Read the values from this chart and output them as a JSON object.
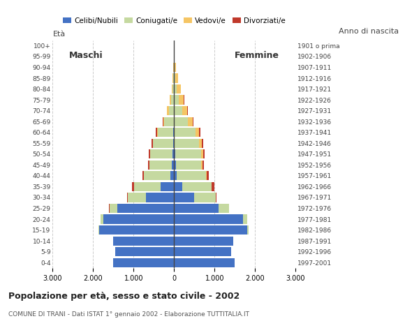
{
  "age_groups": [
    "0-4",
    "5-9",
    "10-14",
    "15-19",
    "20-24",
    "25-29",
    "30-34",
    "35-39",
    "40-44",
    "45-49",
    "50-54",
    "55-59",
    "60-64",
    "65-69",
    "70-74",
    "75-79",
    "80-84",
    "85-89",
    "90-94",
    "95-99",
    "100+"
  ],
  "birth_years": [
    "1997-2001",
    "1992-1996",
    "1987-1991",
    "1982-1986",
    "1977-1981",
    "1972-1976",
    "1967-1971",
    "1962-1966",
    "1957-1961",
    "1952-1956",
    "1947-1951",
    "1942-1946",
    "1937-1941",
    "1932-1936",
    "1927-1931",
    "1922-1926",
    "1917-1921",
    "1912-1916",
    "1907-1911",
    "1902-1906",
    "1901 o prima"
  ],
  "males": {
    "celibi": [
      1500,
      1450,
      1500,
      1850,
      1750,
      1400,
      700,
      340,
      90,
      60,
      40,
      30,
      20,
      10,
      5,
      0,
      0,
      0,
      0,
      0,
      0
    ],
    "coniugati": [
      0,
      0,
      5,
      20,
      60,
      200,
      450,
      650,
      650,
      550,
      550,
      490,
      380,
      230,
      130,
      70,
      35,
      20,
      10,
      5,
      0
    ],
    "vedovi": [
      0,
      0,
      0,
      0,
      0,
      0,
      0,
      0,
      0,
      5,
      5,
      10,
      20,
      30,
      40,
      40,
      30,
      20,
      10,
      5,
      0
    ],
    "divorziati": [
      0,
      0,
      0,
      0,
      0,
      5,
      20,
      50,
      50,
      30,
      30,
      30,
      30,
      15,
      10,
      5,
      0,
      0,
      0,
      0,
      0
    ]
  },
  "females": {
    "nubili": [
      1500,
      1400,
      1450,
      1800,
      1700,
      1100,
      500,
      200,
      60,
      40,
      20,
      15,
      10,
      5,
      5,
      0,
      0,
      0,
      0,
      0,
      0
    ],
    "coniugate": [
      0,
      0,
      5,
      30,
      100,
      250,
      520,
      720,
      720,
      630,
      640,
      600,
      510,
      340,
      200,
      110,
      60,
      30,
      15,
      5,
      0
    ],
    "vedove": [
      0,
      0,
      0,
      0,
      0,
      0,
      5,
      10,
      20,
      30,
      50,
      70,
      100,
      110,
      120,
      130,
      100,
      70,
      30,
      10,
      0
    ],
    "divorziate": [
      0,
      0,
      0,
      0,
      0,
      5,
      20,
      60,
      60,
      40,
      40,
      40,
      30,
      15,
      10,
      5,
      0,
      0,
      0,
      0,
      0
    ]
  },
  "colors": {
    "celibi_nubili": "#4472c4",
    "coniugati": "#c5d9a0",
    "vedovi": "#f5c564",
    "divorziati": "#c0392b"
  },
  "xlim": 3000,
  "title": "Popolazione per età, sesso e stato civile - 2002",
  "subtitle": "COMUNE DI TRANI - Dati ISTAT 1° gennaio 2002 - Elaborazione TUTTITALIA.IT",
  "ylabel_left": "Età",
  "ylabel_right": "Anno di nascita",
  "label_maschi": "Maschi",
  "label_femmine": "Femmine",
  "legend_labels": [
    "Celibi/Nubili",
    "Coniugati/e",
    "Vedovi/e",
    "Divorziati/e"
  ]
}
